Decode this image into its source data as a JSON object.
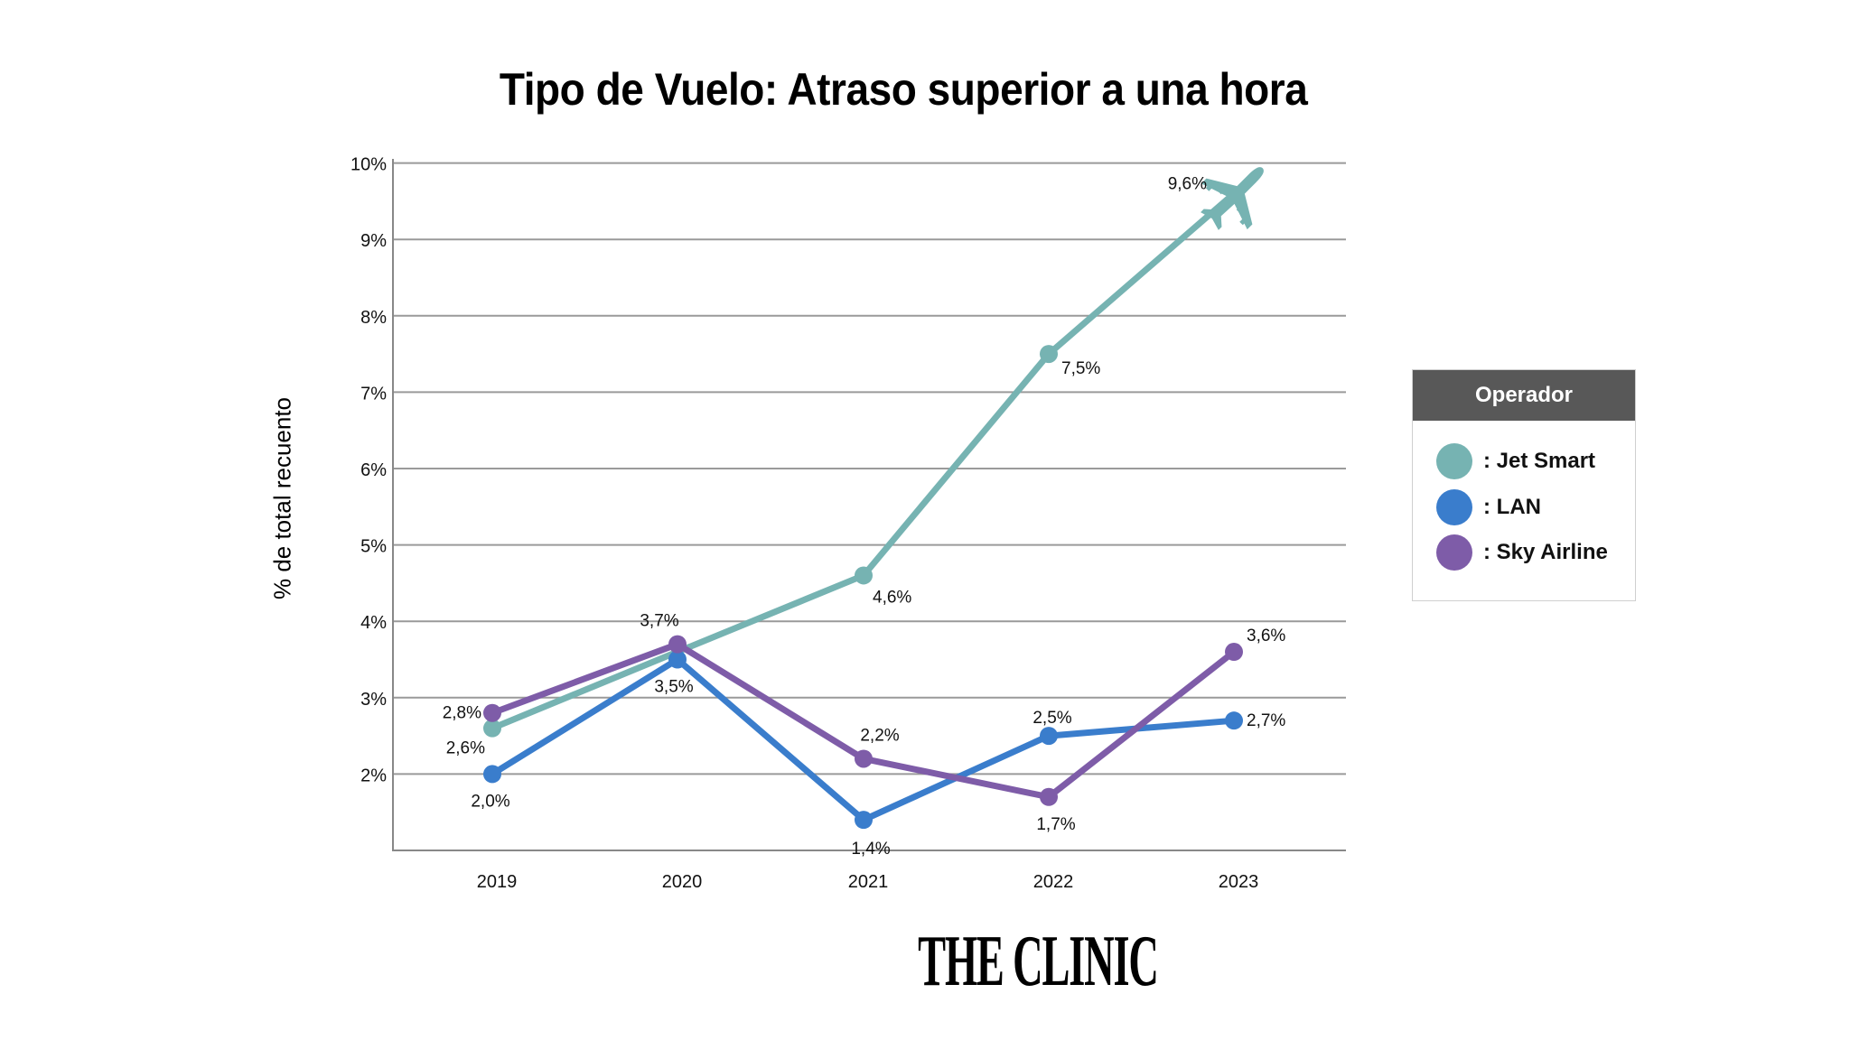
{
  "title": "Tipo de Vuelo: Atraso superior a una hora",
  "ylabel": "% de total recuento",
  "legend": {
    "title": "Operador",
    "items": [
      {
        "label": ": Jet Smart",
        "color": "#76b3b2"
      },
      {
        "label": ": LAN",
        "color": "#3a7dcc"
      },
      {
        "label": ": Sky Airline",
        "color": "#7e5ca8"
      }
    ]
  },
  "logo": "THE CLINIC",
  "chart_data": {
    "type": "line",
    "title": "Tipo de Vuelo: Atraso superior a una hora",
    "xlabel": "",
    "ylabel": "% de total recuento",
    "categories": [
      "2019",
      "2020",
      "2021",
      "2022",
      "2023"
    ],
    "yticks": [
      "2%",
      "3%",
      "4%",
      "5%",
      "6%",
      "7%",
      "8%",
      "9%",
      "10%"
    ],
    "ylim": [
      1,
      10
    ],
    "grid": true,
    "legend_position": "right",
    "legend_title": "Operador",
    "series": [
      {
        "name": "Jet Smart",
        "color": "#76b3b2",
        "values": [
          2.6,
          3.6,
          4.6,
          7.5,
          9.6
        ],
        "labels": [
          "2,6%",
          "",
          "4,6%",
          "7,5%",
          "9,6%"
        ]
      },
      {
        "name": "LAN",
        "color": "#3a7dcc",
        "values": [
          2.0,
          3.5,
          1.4,
          2.5,
          2.7
        ],
        "labels": [
          "2,0%",
          "3,5%",
          "1,4%",
          "2,5%",
          "2,7%"
        ]
      },
      {
        "name": "Sky Airline",
        "color": "#7e5ca8",
        "values": [
          2.8,
          3.7,
          2.2,
          1.7,
          3.6
        ],
        "labels": [
          "2,8%",
          "3,7%",
          "2,2%",
          "1,7%",
          "3,6%"
        ]
      }
    ],
    "annotations": [
      {
        "type": "airplane-icon",
        "at": "Jet Smart 2023"
      }
    ]
  }
}
